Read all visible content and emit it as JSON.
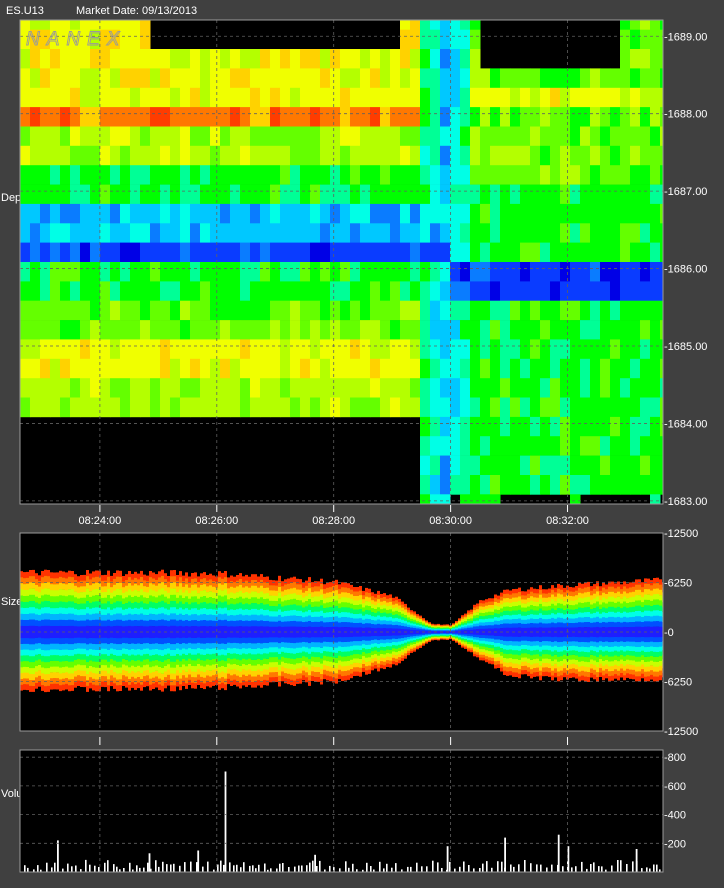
{
  "header": {
    "symbol": "ES.U13",
    "market_date": "Market Date: 09/13/2013"
  },
  "watermark": "NANEX",
  "side_labels": {
    "depth": "Depth Heat Map",
    "size": "Size Map",
    "volume": "Volume"
  },
  "colors": {
    "background": "#404040",
    "plot_bg": "#000000",
    "grid": "#555555",
    "text": "#ffffff"
  },
  "chart_data": [
    {
      "type": "heatmap",
      "name": "depth-heat-map",
      "x_ticks": [
        "08:24:00",
        "08:26:00",
        "08:28:00",
        "08:30:00",
        "08:32:00"
      ],
      "y_ticks": [
        1689.0,
        1688.0,
        1687.0,
        1686.0,
        1685.0,
        1684.0,
        1683.0
      ],
      "y_tick_labels": [
        "-1689.00",
        "-1688.00",
        "-1687.00",
        "-1686.00",
        "-1685.00",
        "-1684.00",
        "-1683.00"
      ],
      "xlim": [
        "08:22:38",
        "08:33:38"
      ],
      "ylim": [
        1682.96,
        1689.21
      ],
      "level_step": 0.25,
      "grid": true
    },
    {
      "type": "area",
      "name": "size-map",
      "y_ticks": [
        12500,
        6250,
        0,
        -6250,
        -12500
      ],
      "y_tick_labels": [
        "-12500",
        "-6250",
        "-0",
        "-6250",
        "-12500"
      ],
      "ylim": [
        -12500,
        12500
      ],
      "x": [
        "08:22:38",
        "08:24:00",
        "08:26:00",
        "08:28:00",
        "08:29:00",
        "08:29:40",
        "08:30:00",
        "08:30:30",
        "08:31:00",
        "08:32:00",
        "08:33:30"
      ],
      "bid_size": [
        7500,
        7500,
        7400,
        6300,
        4500,
        1000,
        900,
        4000,
        5300,
        5900,
        6500
      ],
      "ask_size": [
        7200,
        7200,
        7000,
        6200,
        4200,
        1000,
        900,
        3500,
        5500,
        6000,
        5900
      ],
      "grid": true
    },
    {
      "type": "bar",
      "name": "volume",
      "y_ticks": [
        800,
        600,
        400,
        200
      ],
      "y_tick_labels": [
        "-800",
        "-600",
        "-400",
        "-200"
      ],
      "ylim": [
        0,
        850
      ],
      "spikes": [
        {
          "x": "08:23:16",
          "v": 220
        },
        {
          "x": "08:24:50",
          "v": 130
        },
        {
          "x": "08:25:40",
          "v": 150
        },
        {
          "x": "08:26:08",
          "v": 700
        },
        {
          "x": "08:27:40",
          "v": 120
        },
        {
          "x": "08:29:56",
          "v": 180
        },
        {
          "x": "08:30:55",
          "v": 240
        },
        {
          "x": "08:31:50",
          "v": 260
        },
        {
          "x": "08:32:00",
          "v": 180
        },
        {
          "x": "08:33:10",
          "v": 160
        }
      ],
      "grid": true
    }
  ]
}
